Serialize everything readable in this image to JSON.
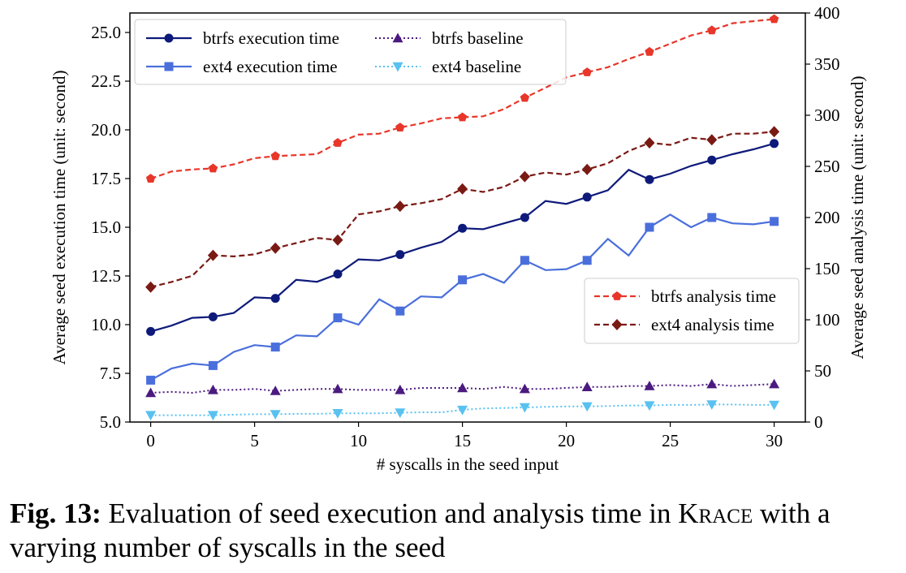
{
  "chart_data": {
    "type": "line",
    "xlabel": "# syscalls in the seed input",
    "ylabel_left": "Average seed execution time (unit: second)",
    "ylabel_right": "Average seed analysis time (unit: second)",
    "xlim": [
      -1,
      31.5
    ],
    "ylim_left": [
      5.0,
      26.0
    ],
    "ylim_right": [
      0,
      400
    ],
    "x_ticks": [
      "0",
      "5",
      "10",
      "15",
      "20",
      "25",
      "30"
    ],
    "y_left_ticks": [
      "5.0",
      "7.5",
      "10.0",
      "12.5",
      "15.0",
      "17.5",
      "20.0",
      "22.5",
      "25.0"
    ],
    "y_right_ticks": [
      "0",
      "50",
      "100",
      "150",
      "200",
      "250",
      "300",
      "350",
      "400"
    ],
    "grid": false,
    "legends": [
      {
        "placement": "upper-left",
        "entries": [
          "btrfs execution time",
          "ext4 execution time",
          "btrfs baseline",
          "ext4 baseline"
        ]
      },
      {
        "placement": "center-right",
        "entries": [
          "btrfs analysis time",
          "ext4 analysis time"
        ]
      }
    ],
    "x": [
      0,
      1,
      2,
      3,
      4,
      5,
      6,
      7,
      8,
      9,
      10,
      11,
      12,
      13,
      14,
      15,
      16,
      17,
      18,
      19,
      20,
      21,
      22,
      23,
      24,
      25,
      26,
      27,
      28,
      29,
      30
    ],
    "series": [
      {
        "name": "btrfs execution time",
        "axis": "left",
        "color": "#0e1a7a",
        "style": "solid",
        "marker": "circle",
        "values": [
          9.65,
          9.95,
          10.35,
          10.4,
          10.6,
          11.4,
          11.35,
          12.3,
          12.2,
          12.6,
          13.35,
          13.3,
          13.6,
          13.95,
          14.25,
          14.95,
          14.9,
          15.2,
          15.5,
          16.35,
          16.2,
          16.55,
          16.9,
          17.95,
          17.45,
          17.75,
          18.15,
          18.45,
          18.75,
          19.0,
          19.3
        ]
      },
      {
        "name": "ext4 execution time",
        "axis": "left",
        "color": "#4a6fdc",
        "style": "solid",
        "marker": "square",
        "values": [
          7.15,
          7.75,
          8.0,
          7.9,
          8.6,
          8.95,
          8.85,
          9.45,
          9.4,
          10.35,
          10.0,
          11.3,
          10.7,
          11.45,
          11.4,
          12.3,
          12.6,
          12.15,
          13.3,
          12.8,
          12.85,
          13.3,
          14.4,
          13.55,
          15.0,
          15.65,
          15.0,
          15.5,
          15.2,
          15.15,
          15.3
        ]
      },
      {
        "name": "btrfs baseline",
        "axis": "left",
        "color": "#4b1a7f",
        "style": "dotted",
        "marker": "triangle-up",
        "values": [
          6.5,
          6.55,
          6.5,
          6.65,
          6.65,
          6.7,
          6.6,
          6.65,
          6.7,
          6.7,
          6.65,
          6.65,
          6.65,
          6.75,
          6.75,
          6.75,
          6.7,
          6.8,
          6.7,
          6.7,
          6.75,
          6.8,
          6.8,
          6.85,
          6.85,
          6.9,
          6.85,
          6.95,
          6.85,
          6.9,
          6.95
        ]
      },
      {
        "name": "ext4 baseline",
        "axis": "left",
        "color": "#59c1f0",
        "style": "dotted",
        "marker": "triangle-down",
        "values": [
          5.35,
          5.35,
          5.35,
          5.35,
          5.38,
          5.4,
          5.4,
          5.42,
          5.42,
          5.45,
          5.45,
          5.45,
          5.48,
          5.5,
          5.5,
          5.62,
          5.7,
          5.72,
          5.75,
          5.78,
          5.8,
          5.8,
          5.82,
          5.85,
          5.85,
          5.88,
          5.88,
          5.9,
          5.9,
          5.88,
          5.88
        ]
      },
      {
        "name": "btrfs analysis time",
        "axis": "right",
        "color": "#e8362a",
        "style": "dashed",
        "marker": "pentagon",
        "values": [
          238,
          245,
          247,
          248,
          252,
          258,
          260,
          261,
          262,
          273,
          281,
          282,
          288,
          292,
          297,
          298,
          299,
          306,
          317,
          327,
          337,
          342,
          347,
          355,
          362,
          370,
          378,
          383,
          390,
          392,
          394
        ]
      },
      {
        "name": "ext4 analysis time",
        "axis": "right",
        "color": "#7a1a14",
        "style": "dashed",
        "marker": "diamond",
        "values": [
          132,
          137,
          143,
          163,
          162,
          164,
          170,
          175,
          180,
          178,
          203,
          206,
          211,
          214,
          218,
          228,
          225,
          230,
          240,
          244,
          242,
          247,
          253,
          265,
          273,
          271,
          278,
          276,
          282,
          282,
          284
        ]
      }
    ]
  },
  "caption": {
    "label": "Fig. 13:",
    "text_before": " Evaluation of seed execution and analysis time in ",
    "name": "Krace",
    "text_after": " with a varying number of syscalls in the seed"
  }
}
